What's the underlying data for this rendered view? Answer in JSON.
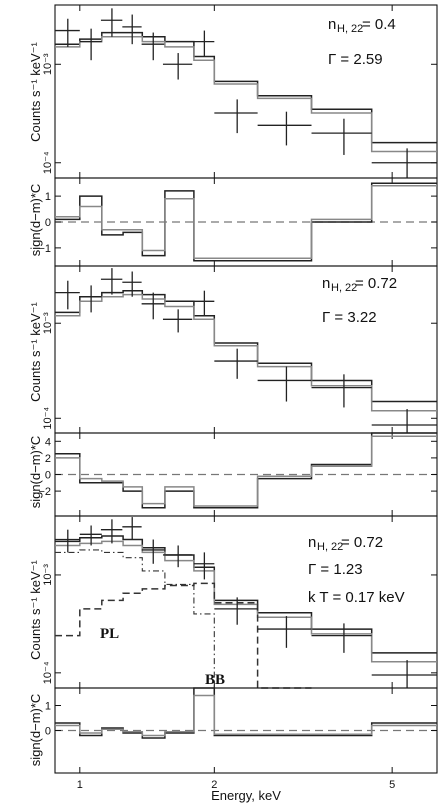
{
  "chart_data": [
    {
      "type": "step",
      "panel": "spectrum-1",
      "ylabel": "Counts s⁻¹ keV⁻¹",
      "yscale": "log",
      "ylim": [
        7e-05,
        0.004
      ],
      "ytick_labels": [
        "10⁻³",
        "10⁻⁴"
      ],
      "annotations": [
        "n",
        "H, 22",
        " = 0.4",
        "Γ = 2.59"
      ],
      "series": [
        {
          "role": "model",
          "color": "#222222",
          "bin_edges": [
            0.88,
            1.0,
            1.12,
            1.25,
            1.38,
            1.55,
            1.8,
            2.0,
            2.5,
            3.3,
            4.5,
            6.3
          ],
          "values": [
            0.0016,
            0.0018,
            0.0021,
            0.0021,
            0.0019,
            0.0017,
            0.0012,
            0.00067,
            0.00048,
            0.00035,
            0.00016
          ]
        },
        {
          "role": "model",
          "color": "#888888",
          "bin_edges": [
            0.88,
            1.0,
            1.12,
            1.25,
            1.38,
            1.55,
            1.8,
            2.0,
            2.5,
            3.3,
            4.5,
            6.3
          ],
          "values": [
            0.0015,
            0.0017,
            0.0019,
            0.0019,
            0.0017,
            0.0015,
            0.0011,
            0.00063,
            0.00045,
            0.00032,
            0.00013
          ]
        },
        {
          "role": "data",
          "x": [
            0.94,
            1.06,
            1.18,
            1.31,
            1.46,
            1.66,
            1.9,
            2.25,
            2.9,
            3.9,
            5.4
          ],
          "y": [
            0.0022,
            0.0017,
            0.0028,
            0.0024,
            0.0016,
            0.001,
            0.0017,
            0.00032,
            0.00024,
            0.0002,
            0.0001
          ],
          "xerr": [
            0.06,
            0.06,
            0.065,
            0.065,
            0.085,
            0.125,
            0.1,
            0.25,
            0.4,
            0.6,
            0.9
          ],
          "yerr": [
            0.0007,
            0.0006,
            0.0009,
            0.0008,
            0.0005,
            0.0003,
            0.0005,
            0.00012,
            9e-05,
            8e-05,
            4e-05
          ]
        }
      ]
    },
    {
      "type": "step",
      "panel": "residuals-1",
      "ylabel": "sign(d−m)*C",
      "ylim": [
        -1.7,
        1.7
      ],
      "ytick_labels": [
        "1",
        "0",
        "−1"
      ],
      "zero_line": "dashed",
      "series": [
        {
          "color": "#222222",
          "bin_edges": [
            0.88,
            1.0,
            1.12,
            1.25,
            1.38,
            1.55,
            1.8,
            2.0,
            2.5,
            3.3,
            4.5,
            6.3
          ],
          "values": [
            0.1,
            1.0,
            -0.5,
            -0.4,
            -1.3,
            1.2,
            -1.5,
            -1.5,
            -1.5,
            0.0,
            1.5
          ]
        },
        {
          "color": "#888888",
          "bin_edges": [
            0.88,
            1.0,
            1.12,
            1.25,
            1.38,
            1.55,
            1.8,
            2.0,
            2.5,
            3.3,
            4.5,
            6.3
          ],
          "values": [
            0.2,
            0.6,
            -0.3,
            -0.3,
            -1.1,
            0.9,
            -1.4,
            -1.4,
            -1.4,
            0.1,
            1.4
          ]
        }
      ]
    },
    {
      "type": "step",
      "panel": "spectrum-2",
      "ylabel": "Counts s⁻¹ keV⁻¹",
      "yscale": "log",
      "ylim": [
        7e-05,
        0.004
      ],
      "ytick_labels": [
        "10⁻³",
        "10⁻⁴"
      ],
      "annotations": [
        "n",
        "H, 22",
        " = 0.72",
        "Γ = 3.22"
      ],
      "series": [
        {
          "role": "model",
          "color": "#222222",
          "bin_edges": [
            0.88,
            1.0,
            1.12,
            1.25,
            1.38,
            1.55,
            1.8,
            2.0,
            2.5,
            3.3,
            4.5,
            6.3
          ],
          "values": [
            0.0013,
            0.0019,
            0.0021,
            0.0022,
            0.002,
            0.0017,
            0.0012,
            0.00062,
            0.00038,
            0.00025,
            0.00015
          ]
        },
        {
          "role": "model",
          "color": "#888888",
          "bin_edges": [
            0.88,
            1.0,
            1.12,
            1.25,
            1.38,
            1.55,
            1.8,
            2.0,
            2.5,
            3.3,
            4.5,
            6.3
          ],
          "values": [
            0.0012,
            0.0017,
            0.0019,
            0.002,
            0.0018,
            0.0015,
            0.0011,
            0.00058,
            0.00035,
            0.00022,
            0.00012
          ]
        },
        {
          "role": "data",
          "x": [
            0.94,
            1.06,
            1.18,
            1.31,
            1.46,
            1.66,
            1.9,
            2.25,
            2.9,
            3.9,
            5.4
          ],
          "y": [
            0.0021,
            0.0019,
            0.0029,
            0.0027,
            0.0016,
            0.0011,
            0.0017,
            0.0004,
            0.00025,
            0.00021,
            8.5e-05
          ],
          "xerr": [
            0.06,
            0.06,
            0.065,
            0.065,
            0.085,
            0.125,
            0.1,
            0.25,
            0.4,
            0.6,
            0.9
          ],
          "yerr": [
            0.0007,
            0.0006,
            0.0009,
            0.0008,
            0.0005,
            0.0003,
            0.0005,
            0.00014,
            0.0001,
            8e-05,
            4e-05
          ]
        }
      ]
    },
    {
      "type": "step",
      "panel": "residuals-2",
      "ylabel": "sign(d−m)*C",
      "ylim": [
        -5.0,
        5.0
      ],
      "ytick_labels": [
        "4",
        "2",
        "0",
        "−2"
      ],
      "zero_line": "dashed",
      "series": [
        {
          "color": "#222222",
          "bin_edges": [
            0.88,
            1.0,
            1.12,
            1.25,
            1.38,
            1.55,
            1.8,
            2.0,
            2.5,
            3.3,
            4.5,
            6.3
          ],
          "values": [
            2.5,
            -1.0,
            -1.0,
            -2.0,
            -4.0,
            -2.0,
            -4.0,
            -4.0,
            -0.5,
            1.2,
            5.0
          ]
        },
        {
          "color": "#888888",
          "bin_edges": [
            0.88,
            1.0,
            1.12,
            1.25,
            1.38,
            1.55,
            1.8,
            2.0,
            2.5,
            3.3,
            4.5,
            6.3
          ],
          "values": [
            2.0,
            -0.5,
            -0.8,
            -1.5,
            -3.5,
            -1.5,
            -3.8,
            -3.8,
            -0.2,
            1.0,
            4.6
          ]
        }
      ]
    },
    {
      "type": "step",
      "panel": "spectrum-3",
      "ylabel": "Counts s⁻¹ keV⁻¹",
      "yscale": "log",
      "ylim": [
        7e-05,
        0.004
      ],
      "ytick_labels": [
        "10⁻³",
        "10⁻⁴"
      ],
      "annotations": [
        "n",
        "H, 22",
        " = 0.72",
        "Γ = 1.23",
        "k T = 0.17 keV",
        "PL",
        "BB"
      ],
      "series": [
        {
          "role": "model",
          "color": "#222222",
          "bin_edges": [
            0.88,
            1.0,
            1.12,
            1.25,
            1.38,
            1.55,
            1.8,
            2.0,
            2.5,
            3.3,
            4.5,
            6.3
          ],
          "values": [
            0.0022,
            0.0024,
            0.0025,
            0.0023,
            0.0019,
            0.0016,
            0.0012,
            0.00055,
            0.00041,
            0.00028,
            0.00016
          ]
        },
        {
          "role": "model",
          "color": "#888888",
          "bin_edges": [
            0.88,
            1.0,
            1.12,
            1.25,
            1.38,
            1.55,
            1.8,
            2.0,
            2.5,
            3.3,
            4.5,
            6.3
          ],
          "values": [
            0.002,
            0.0021,
            0.0022,
            0.002,
            0.0017,
            0.0014,
            0.0011,
            0.0005,
            0.00037,
            0.00025,
            0.00013
          ]
        },
        {
          "role": "power-law component",
          "color": "#333333",
          "dash": "dashed",
          "bin_edges": [
            0.88,
            1.0,
            1.12,
            1.25,
            1.38,
            1.55,
            1.8,
            2.0,
            2.5,
            3.3
          ],
          "values": [
            0.00024,
            0.00045,
            0.00055,
            0.00065,
            0.00072,
            0.00078,
            0.00082,
            0.00052,
            6.5e-05
          ]
        },
        {
          "role": "blackbody component",
          "color": "#333333",
          "dash": "dashdot",
          "bin_edges": [
            0.88,
            1.0,
            1.12,
            1.25,
            1.38,
            1.55,
            1.8,
            2.0,
            2.5
          ],
          "values": [
            0.0017,
            0.0018,
            0.0017,
            0.0015,
            0.0011,
            0.0008,
            0.0004,
            6e-05
          ]
        },
        {
          "role": "data",
          "x": [
            0.94,
            1.06,
            1.18,
            1.31,
            1.46,
            1.66,
            1.9,
            2.25,
            2.9,
            3.9,
            5.4
          ],
          "y": [
            0.0023,
            0.0026,
            0.0029,
            0.0031,
            0.0018,
            0.0016,
            0.0013,
            0.00045,
            0.00028,
            0.00024,
            9.5e-05
          ],
          "xerr": [
            0.06,
            0.06,
            0.065,
            0.065,
            0.085,
            0.125,
            0.1,
            0.25,
            0.4,
            0.6,
            0.9
          ],
          "yerr": [
            0.0006,
            0.0006,
            0.0008,
            0.0008,
            0.0005,
            0.0004,
            0.0004,
            0.00014,
            0.0001,
            8e-05,
            4e-05
          ]
        }
      ]
    },
    {
      "type": "step",
      "panel": "residuals-3",
      "ylabel": "sign(d−m)*C",
      "xlabel": "Energy, keV",
      "xscale": "log",
      "xlim": [
        0.88,
        6.3
      ],
      "xtick_labels": [
        "1",
        "2",
        "5"
      ],
      "xticks": [
        1,
        2,
        5
      ],
      "ylim": [
        -1.7,
        1.7
      ],
      "ytick_labels": [
        "1",
        "0"
      ],
      "zero_line": "dashed",
      "series": [
        {
          "color": "#222222",
          "bin_edges": [
            0.88,
            1.0,
            1.12,
            1.25,
            1.38,
            1.55,
            1.8,
            2.0,
            2.5,
            3.3,
            4.5,
            6.3
          ],
          "values": [
            0.3,
            -0.2,
            0.1,
            -0.1,
            -0.3,
            -0.1,
            1.7,
            -0.2,
            -0.2,
            -0.2,
            0.3
          ]
        },
        {
          "color": "#888888",
          "bin_edges": [
            0.88,
            1.0,
            1.12,
            1.25,
            1.38,
            1.55,
            1.8,
            2.0,
            2.5,
            3.3,
            4.5,
            6.3
          ],
          "values": [
            0.2,
            -0.1,
            0.05,
            -0.05,
            -0.2,
            -0.05,
            1.4,
            -0.15,
            -0.15,
            -0.15,
            0.2
          ]
        }
      ]
    }
  ]
}
